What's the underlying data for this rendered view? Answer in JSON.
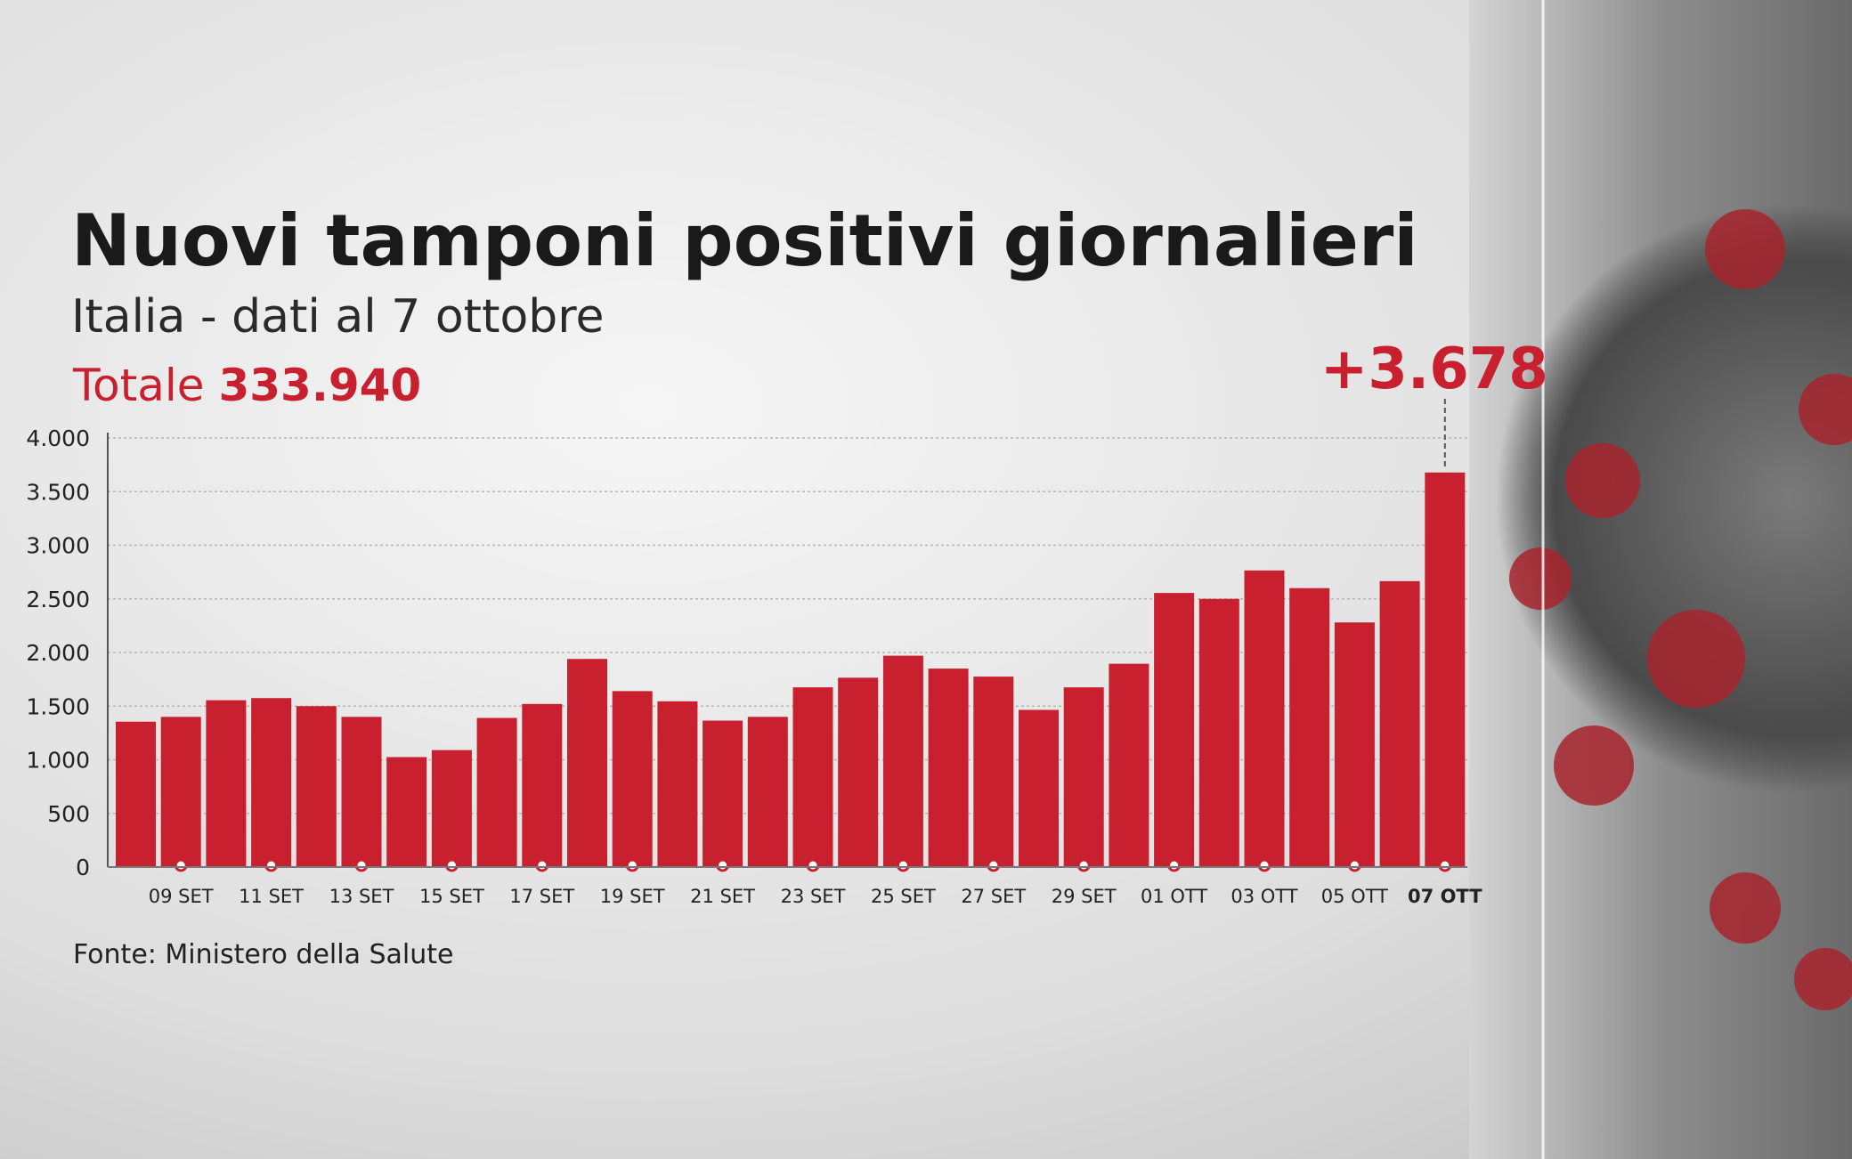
{
  "chart_data": {
    "type": "bar",
    "title": "Nuovi tamponi positivi giornalieri",
    "subtitle": "Italia - dati al 7 ottobre",
    "total_label": "Totale",
    "total": "333.940",
    "annotation": "+3.678",
    "source": "Fonte: Ministero della Salute",
    "categories": [
      null,
      "09 SET",
      null,
      "11 SET",
      null,
      "13 SET",
      null,
      "15 SET",
      null,
      "17 SET",
      null,
      "19 SET",
      null,
      "21 SET",
      null,
      "23 SET",
      null,
      "25 SET",
      null,
      "27 SET",
      null,
      "29 SET",
      null,
      "01 OTT",
      null,
      "03 OTT",
      null,
      "05 OTT",
      null,
      "07 OTT"
    ],
    "values": [
      1355,
      1400,
      1555,
      1575,
      1500,
      1400,
      1025,
      1090,
      1390,
      1520,
      1940,
      1640,
      1545,
      1365,
      1400,
      1675,
      1765,
      1970,
      1850,
      1775,
      1465,
      1675,
      1895,
      2555,
      2500,
      2765,
      2600,
      2280,
      2665,
      3678
    ],
    "color": "#c8202f",
    "ylim": [
      0,
      4000
    ],
    "yticks": [
      0,
      500,
      {
        "value": 1000,
        "label": "1.000"
      },
      {
        "value": 1500,
        "label": "1.500"
      },
      {
        "value": 2000,
        "label": "2.000"
      },
      {
        "value": 2500,
        "label": "2.500"
      },
      {
        "value": 3000,
        "label": "3.000"
      },
      {
        "value": 3500,
        "label": "3.500"
      },
      {
        "value": 4000,
        "label": "4.000"
      }
    ],
    "grid": true
  }
}
